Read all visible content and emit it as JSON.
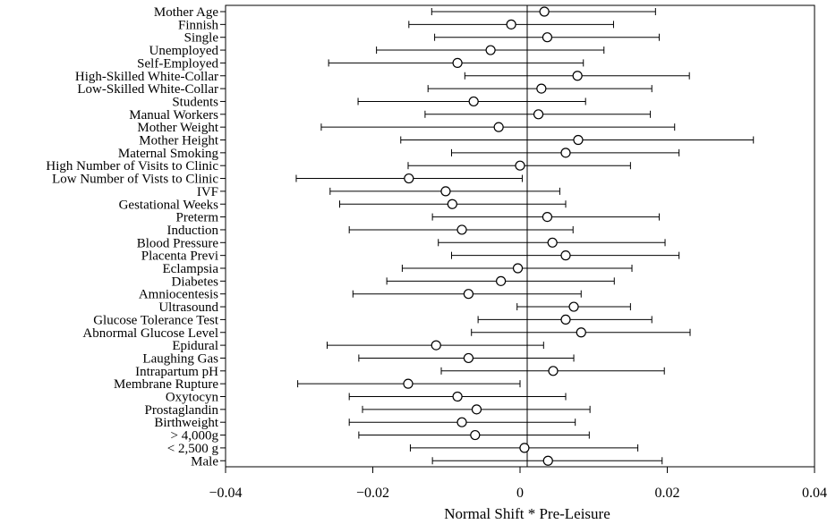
{
  "chart_data": {
    "type": "scatter",
    "style": "coefficient-plot-with-95-ci",
    "title": "",
    "xlabel": "Normal Shift * Pre-Leisure",
    "ylabel": "",
    "xlim": [
      -0.04,
      0.04
    ],
    "xticks": [
      -0.04,
      -0.02,
      0,
      0.02,
      0.04
    ],
    "xtick_labels": [
      "−0.04",
      "−0.02",
      "0",
      "0.02",
      "0.04"
    ],
    "reference_line_x": 0,
    "grid": false,
    "legend": "none",
    "marker": "hollow-circle",
    "categories": [
      "Mother Age",
      "Finnish",
      "Single",
      "Unemployed",
      "Self-Employed",
      "High-Skilled White-Collar",
      "Low-Skilled White-Collar",
      "Students",
      "Manual Workers",
      "Mother Weight",
      "Mother Height",
      "Maternal Smoking",
      "High Number of Visits to Clinic",
      "Low Number of Vists to Clinic",
      "IVF",
      "Gestational Weeks",
      "Preterm",
      "Induction",
      "Blood Pressure",
      "Placenta Previ",
      "Eclampsia",
      "Diabetes",
      "Amniocentesis",
      "Ultrasound",
      "Glucose Tolerance Test",
      "Abnormal Glucose Level",
      "Epidural",
      "Laughing Gas",
      "Intrapartum pH",
      "Membrane Rupture",
      "Oxytocyn",
      "Prostaglandin",
      "Birthweight",
      "> 4,000g",
      "< 2,500 g",
      "Male"
    ],
    "estimates": [
      0.0033,
      -0.0012,
      0.0037,
      -0.004,
      -0.0085,
      0.0078,
      0.0029,
      -0.0063,
      0.0025,
      -0.0029,
      0.0079,
      0.0062,
      0.0,
      -0.0151,
      -0.0101,
      -0.0092,
      0.0037,
      -0.0079,
      0.0044,
      0.0062,
      -0.0003,
      -0.0026,
      -0.007,
      0.0073,
      0.0062,
      0.0083,
      -0.0114,
      -0.007,
      0.0045,
      -0.0152,
      -0.0085,
      -0.0059,
      -0.0079,
      -0.0061,
      0.0006,
      0.0038
    ],
    "ci_low": [
      -0.012,
      -0.0151,
      -0.0116,
      -0.0195,
      -0.026,
      -0.0075,
      -0.0125,
      -0.022,
      -0.0129,
      -0.027,
      -0.0162,
      -0.0093,
      -0.0152,
      -0.0304,
      -0.0258,
      -0.0245,
      -0.0119,
      -0.0232,
      -0.0111,
      -0.0093,
      -0.016,
      -0.0181,
      -0.0227,
      -0.0004,
      -0.0057,
      -0.0066,
      -0.0262,
      -0.0219,
      -0.0107,
      -0.0302,
      -0.0232,
      -0.0214,
      -0.0232,
      -0.0219,
      -0.0149,
      -0.0119
    ],
    "ci_high": [
      0.0184,
      0.0127,
      0.0189,
      0.0114,
      0.0086,
      0.023,
      0.0179,
      0.0089,
      0.0177,
      0.021,
      0.0317,
      0.0216,
      0.015,
      0.0003,
      0.0054,
      0.0062,
      0.0189,
      0.0072,
      0.0197,
      0.0216,
      0.0152,
      0.0128,
      0.0083,
      0.015,
      0.0179,
      0.0231,
      0.0032,
      0.0073,
      0.0196,
      0.0,
      0.0062,
      0.0095,
      0.0075,
      0.0094,
      0.016,
      0.0193
    ]
  }
}
